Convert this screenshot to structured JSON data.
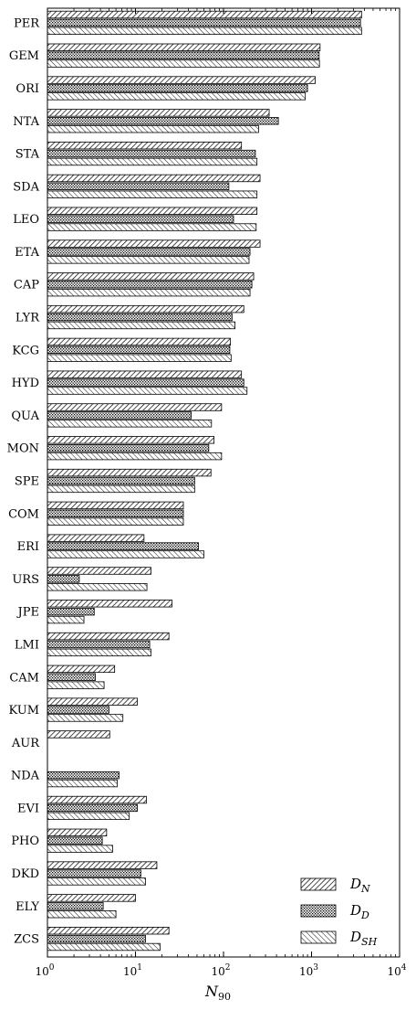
{
  "chart_data": {
    "type": "bar",
    "orientation": "horizontal",
    "xscale": "log",
    "xlim": [
      1,
      10000
    ],
    "xlabel": "N",
    "xlabel_sub": "90",
    "xticks": [
      {
        "base": "10",
        "exp": "0"
      },
      {
        "base": "10",
        "exp": "1"
      },
      {
        "base": "10",
        "exp": "2"
      },
      {
        "base": "10",
        "exp": "3"
      },
      {
        "base": "10",
        "exp": "4"
      }
    ],
    "legend_position": "bottom-right",
    "grid": false,
    "categories": [
      "PER",
      "GEM",
      "ORI",
      "NTA",
      "STA",
      "SDA",
      "LEO",
      "ETA",
      "CAP",
      "LYR",
      "KCG",
      "HYD",
      "QUA",
      "MON",
      "SPE",
      "COM",
      "ERI",
      "URS",
      "JPE",
      "LMI",
      "CAM",
      "KUM",
      "AUR",
      "NDA",
      "EVI",
      "PHO",
      "DKD",
      "ELY",
      "ZCS"
    ],
    "series": [
      {
        "name": "D",
        "sub": "N",
        "pattern": "diag",
        "values": [
          3700,
          1250,
          1100,
          330,
          160,
          260,
          240,
          260,
          220,
          170,
          120,
          160,
          95,
          78,
          72,
          35,
          12.5,
          15,
          26,
          24,
          5.8,
          10.5,
          5.1,
          null,
          13.3,
          4.7,
          17.5,
          10,
          24
        ]
      },
      {
        "name": "D",
        "sub": "D",
        "pattern": "dots",
        "values": [
          3600,
          1220,
          900,
          420,
          230,
          115,
          130,
          200,
          210,
          125,
          118,
          170,
          43,
          68,
          47,
          35,
          52,
          2.3,
          3.4,
          14.5,
          3.5,
          5,
          null,
          6.5,
          10.5,
          4.2,
          11.5,
          4.3,
          13
        ]
      },
      {
        "name": "D",
        "sub": "SH",
        "pattern": "rdiag",
        "values": [
          3700,
          1230,
          850,
          250,
          240,
          240,
          235,
          195,
          200,
          135,
          122,
          185,
          73,
          95,
          47,
          35,
          60,
          13.5,
          2.6,
          15,
          4.4,
          7.2,
          null,
          6.2,
          8.5,
          5.5,
          13,
          6,
          19
        ]
      }
    ]
  }
}
